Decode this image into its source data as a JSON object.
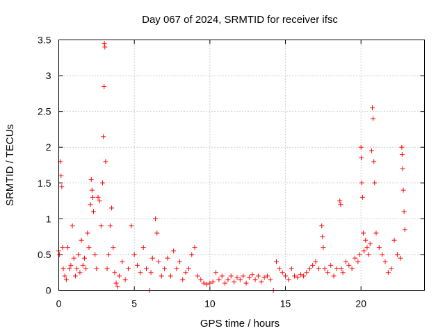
{
  "chart_data": {
    "type": "scatter",
    "title": "Day 067 of 2024, SRMTID for receiver ifsc",
    "xlabel": "GPS time / hours",
    "ylabel": "SRMTID / TECUs",
    "xlim": [
      0,
      24.2
    ],
    "ylim": [
      0,
      3.5
    ],
    "x_ticks": [
      0,
      5,
      10,
      15,
      20
    ],
    "x_tick_labels": [
      "0",
      "5",
      "10",
      "15",
      "20"
    ],
    "y_ticks": [
      0,
      0.5,
      1,
      1.5,
      2,
      2.5,
      3,
      3.5
    ],
    "y_tick_labels": [
      "0",
      "0.5",
      "1",
      "1.5",
      "2",
      "2.5",
      "3",
      "3.5"
    ],
    "grid": true,
    "marker": "+",
    "series": [
      {
        "name": "SRMTID",
        "color": "#ff0000",
        "x": [
          0.0,
          0.05,
          0.1,
          0.15,
          0.2,
          0.25,
          0.3,
          0.4,
          0.5,
          0.6,
          0.7,
          0.8,
          0.9,
          1.0,
          1.1,
          1.2,
          1.3,
          1.4,
          1.5,
          1.6,
          1.7,
          1.8,
          1.9,
          2.0,
          2.1,
          2.15,
          2.2,
          2.25,
          2.3,
          2.4,
          2.5,
          2.6,
          2.7,
          2.8,
          2.9,
          2.95,
          3.0,
          3.02,
          3.05,
          3.1,
          3.2,
          3.3,
          3.4,
          3.5,
          3.6,
          3.7,
          3.8,
          3.9,
          4.0,
          4.2,
          4.4,
          4.6,
          4.8,
          5.0,
          5.2,
          5.4,
          5.6,
          5.8,
          6.0,
          6.1,
          6.2,
          6.4,
          6.5,
          6.6,
          6.8,
          7.0,
          7.2,
          7.4,
          7.6,
          7.8,
          8.0,
          8.2,
          8.4,
          8.6,
          8.8,
          9.0,
          9.2,
          9.4,
          9.6,
          9.8,
          10.0,
          10.2,
          10.4,
          10.6,
          10.8,
          11.0,
          11.2,
          11.4,
          11.6,
          11.8,
          12.0,
          12.2,
          12.4,
          12.6,
          12.8,
          13.0,
          13.2,
          13.4,
          13.6,
          13.8,
          14.0,
          14.2,
          14.4,
          14.6,
          14.8,
          15.0,
          15.2,
          15.4,
          15.6,
          15.8,
          16.0,
          16.2,
          16.4,
          16.6,
          16.8,
          17.0,
          17.2,
          17.4,
          17.45,
          17.5,
          17.6,
          17.8,
          18.0,
          18.2,
          18.4,
          18.6,
          18.65,
          18.7,
          18.8,
          19.0,
          19.2,
          19.4,
          19.6,
          19.8,
          19.9,
          20.0,
          20.02,
          20.05,
          20.1,
          20.15,
          20.2,
          20.3,
          20.4,
          20.5,
          20.6,
          20.7,
          20.75,
          20.8,
          20.85,
          20.9,
          21.0,
          21.2,
          21.4,
          21.6,
          21.8,
          22.0,
          22.2,
          22.4,
          22.6,
          22.7,
          22.72,
          22.75,
          22.8,
          22.85,
          22.9
        ],
        "y": [
          0.55,
          0.5,
          1.8,
          1.6,
          1.45,
          0.6,
          0.3,
          0.2,
          0.15,
          0.6,
          0.3,
          0.35,
          0.9,
          0.45,
          0.2,
          0.3,
          0.5,
          0.25,
          0.7,
          0.35,
          0.45,
          0.3,
          0.8,
          0.6,
          1.2,
          1.55,
          1.4,
          1.3,
          1.1,
          0.5,
          0.3,
          1.3,
          1.25,
          0.9,
          1.5,
          2.15,
          2.85,
          3.45,
          3.4,
          1.8,
          0.3,
          0.5,
          0.9,
          1.15,
          0.6,
          0.25,
          0.1,
          0.05,
          0.2,
          0.4,
          0.15,
          0.3,
          0.9,
          0.5,
          0.35,
          0.25,
          0.6,
          0.3,
          0.0,
          0.25,
          0.45,
          1.0,
          0.8,
          0.4,
          0.2,
          0.3,
          0.45,
          0.2,
          0.55,
          0.3,
          0.4,
          0.15,
          0.25,
          0.3,
          0.5,
          0.6,
          0.2,
          0.15,
          0.1,
          0.08,
          0.1,
          0.12,
          0.25,
          0.15,
          0.2,
          0.1,
          0.15,
          0.2,
          0.12,
          0.18,
          0.15,
          0.2,
          0.1,
          0.18,
          0.22,
          0.15,
          0.2,
          0.12,
          0.18,
          0.2,
          0.15,
          0.0,
          0.4,
          0.3,
          0.25,
          0.2,
          0.15,
          0.3,
          0.2,
          0.18,
          0.22,
          0.2,
          0.25,
          0.3,
          0.35,
          0.4,
          0.3,
          0.9,
          0.75,
          0.6,
          0.3,
          0.25,
          0.35,
          0.2,
          0.3,
          1.25,
          1.2,
          0.3,
          0.25,
          0.4,
          0.35,
          0.3,
          0.45,
          0.4,
          0.5,
          2.0,
          1.85,
          1.5,
          1.3,
          0.8,
          0.55,
          0.7,
          0.6,
          0.5,
          0.65,
          1.95,
          2.55,
          2.4,
          1.8,
          1.5,
          0.8,
          0.6,
          0.5,
          0.4,
          0.25,
          0.3,
          0.7,
          0.5,
          0.45,
          2.0,
          1.9,
          1.7,
          1.4,
          1.1,
          0.85
        ]
      }
    ]
  }
}
